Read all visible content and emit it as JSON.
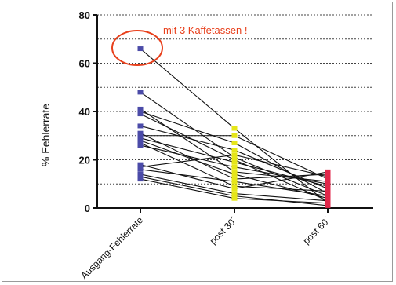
{
  "chart_data": {
    "type": "line",
    "ylabel": "% Fehlerrate",
    "ylim": [
      0,
      80
    ],
    "yticks": [
      0,
      20,
      40,
      60,
      80
    ],
    "gridlines": [
      10,
      20,
      30,
      40,
      50,
      60,
      70,
      80
    ],
    "categories": [
      "Ausgang-Fehlerrate",
      "post 30´",
      "post 60´"
    ],
    "annotation": {
      "text": "mit 3 Kaffetassen !",
      "color": "#e8401c",
      "target_value": 66
    },
    "marker_colors": [
      "#4b4ba8",
      "#e6e619",
      "#e0264a"
    ],
    "series": [
      {
        "values": [
          66,
          33,
          2
        ]
      },
      {
        "values": [
          48,
          21,
          5
        ]
      },
      {
        "values": [
          41,
          15,
          11
        ]
      },
      {
        "values": [
          40,
          27,
          6
        ]
      },
      {
        "values": [
          39,
          20,
          3
        ]
      },
      {
        "values": [
          34,
          24,
          8
        ]
      },
      {
        "values": [
          31,
          12,
          14
        ]
      },
      {
        "values": [
          30,
          30,
          12
        ]
      },
      {
        "values": [
          29,
          19,
          9
        ]
      },
      {
        "values": [
          28,
          14,
          4
        ]
      },
      {
        "values": [
          27,
          9,
          7
        ]
      },
      {
        "values": [
          26,
          17,
          10
        ]
      },
      {
        "values": [
          18,
          8,
          15
        ]
      },
      {
        "values": [
          17,
          22,
          13
        ]
      },
      {
        "values": [
          16,
          11,
          5
        ]
      },
      {
        "values": [
          14,
          6,
          3
        ]
      },
      {
        "values": [
          13,
          5,
          1
        ]
      },
      {
        "values": [
          12,
          4,
          2
        ]
      }
    ]
  }
}
